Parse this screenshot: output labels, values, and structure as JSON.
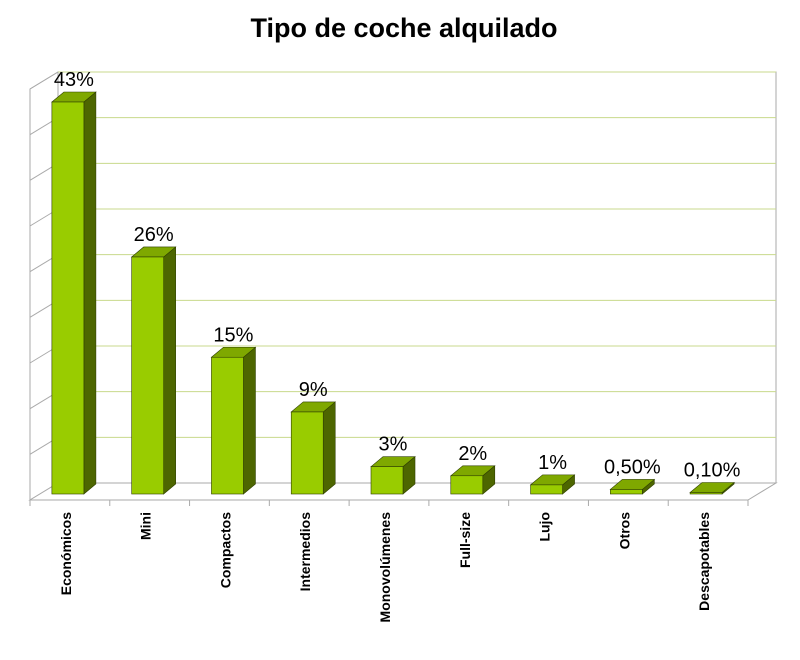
{
  "chart_data": {
    "type": "bar",
    "title": "Tipo de coche alquilado",
    "categories": [
      "Económicos",
      "Mini",
      "Compactos",
      "Intermedios",
      "Monovolúmenes",
      "Full-size",
      "Lujo",
      "Otros",
      "Descapotables"
    ],
    "values": [
      43,
      26,
      15,
      9,
      3,
      2,
      1,
      0.5,
      0.1
    ],
    "data_labels": [
      "43%",
      "26%",
      "15%",
      "9%",
      "3%",
      "2%",
      "1%",
      "0,50%",
      "0,10%"
    ],
    "ylim": [
      0,
      45
    ],
    "grid": true,
    "legend": "none",
    "colors": {
      "bar_front": "#99cc00",
      "bar_top": "#7fa800",
      "bar_side": "#4d6600",
      "gridline": "#c8d98c",
      "axis": "#aaaaaa"
    }
  }
}
